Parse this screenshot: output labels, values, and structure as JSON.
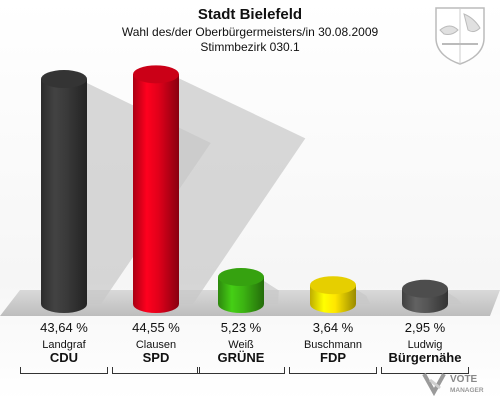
{
  "header": {
    "title": "Stadt Bielefeld",
    "subtitle1": "Wahl des/der Oberbürgermeisters/in 30.08.2009",
    "subtitle2": "Stimmbezirk 030.1"
  },
  "chart_data": {
    "type": "bar",
    "title": "Stadt Bielefeld",
    "categories": [
      "CDU",
      "SPD",
      "GRÜNE",
      "FDP",
      "Bürgernähe"
    ],
    "candidates": [
      "Landgraf",
      "Clausen",
      "Weiß",
      "Buschmann",
      "Ludwig"
    ],
    "values": [
      43.64,
      44.55,
      5.23,
      3.64,
      2.95
    ],
    "value_labels": [
      "43,64 %",
      "44,55 %",
      "5,23 %",
      "3,64 %",
      "2,95 %"
    ],
    "colors": [
      "#3a3a3a",
      "#e2001a",
      "#3cb412",
      "#ffe600",
      "#555555"
    ],
    "ylim": [
      0,
      45
    ]
  },
  "footer": {
    "brand_line1": "VOTE",
    "brand_line2": "MANAGER"
  }
}
